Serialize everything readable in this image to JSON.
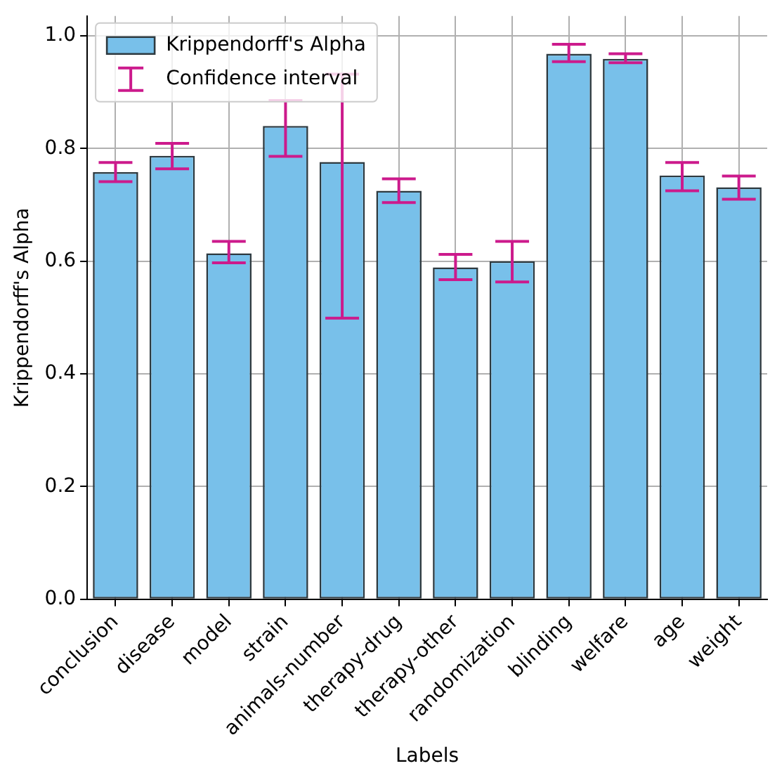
{
  "chart_data": {
    "type": "bar",
    "xlabel": "Labels",
    "ylabel": "Krippendorff's Alpha",
    "categories": [
      "conclusion",
      "disease",
      "model",
      "strain",
      "animals-number",
      "therapy-drug",
      "therapy-other",
      "randomization",
      "blinding",
      "welfare",
      "age",
      "weight"
    ],
    "series": [
      {
        "name": "Krippendorff's Alpha",
        "color": "#78c0ea",
        "values": [
          0.758,
          0.787,
          0.614,
          0.84,
          0.776,
          0.725,
          0.589,
          0.6,
          0.968,
          0.959,
          0.752,
          0.731
        ],
        "errors": [
          [
            0.741,
            0.775
          ],
          [
            0.764,
            0.809
          ],
          [
            0.597,
            0.635
          ],
          [
            0.786,
            0.885
          ],
          [
            0.499,
            0.932
          ],
          [
            0.704,
            0.746
          ],
          [
            0.567,
            0.612
          ],
          [
            0.563,
            0.635
          ],
          [
            0.954,
            0.985
          ],
          [
            0.952,
            0.968
          ],
          [
            0.725,
            0.775
          ],
          [
            0.71,
            0.751
          ]
        ]
      }
    ],
    "annotations": [
      "Confidence interval"
    ],
    "ylim": [
      0,
      1.035
    ],
    "yticks": [
      {
        "value": 0,
        "label": "0.0"
      },
      {
        "value": 0.2,
        "label": "0.2"
      },
      {
        "value": 0.4,
        "label": "0.4"
      },
      {
        "value": 0.6,
        "label": "0.6"
      },
      {
        "value": 0.8,
        "label": "0.8"
      },
      {
        "value": 1,
        "label": "1.0"
      }
    ],
    "grid": true,
    "legend": "top left"
  }
}
